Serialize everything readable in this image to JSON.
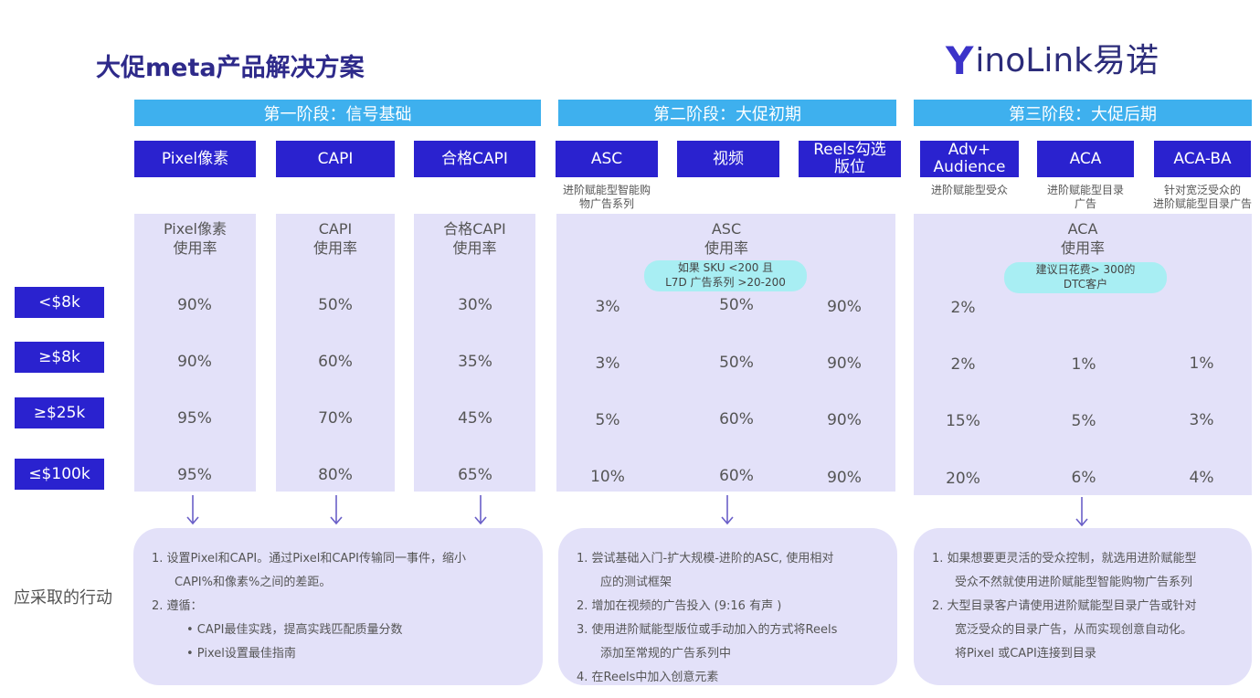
{
  "title": "大促meta产品解决方案",
  "logo": {
    "brand_mark": "Y",
    "brand_text": "inoLink易诺"
  },
  "stages": [
    "第一阶段：信号基础",
    "第二阶段：大促初期",
    "第三阶段：大促后期"
  ],
  "products": [
    {
      "label": "Pixel像素",
      "sub": ""
    },
    {
      "label": "CAPI",
      "sub": ""
    },
    {
      "label": "合格CAPI",
      "sub": ""
    },
    {
      "label": "ASC",
      "sub_lines": [
        "进阶赋能型智能购",
        "物广告系列"
      ]
    },
    {
      "label": "视频",
      "sub": ""
    },
    {
      "label_lines": [
        "Reels勾选",
        "版位"
      ]
    },
    {
      "label_lines": [
        "Adv+",
        "Audience"
      ],
      "sub_lines": [
        "进阶赋能型受众"
      ]
    },
    {
      "label": "ACA",
      "sub_lines": [
        "进阶赋能型目录",
        "广告"
      ]
    },
    {
      "label": "ACA-BA",
      "sub_lines": [
        "针对宽泛受众的",
        "进阶赋能型目录广告"
      ]
    }
  ],
  "col_heads": {
    "pixel": [
      "Pixel像素",
      "使用率"
    ],
    "capi": [
      "CAPI",
      "使用率"
    ],
    "qcapi": [
      "合格CAPI",
      "使用率"
    ],
    "asc": [
      "ASC",
      "使用率"
    ],
    "aca": [
      "ACA",
      "使用率"
    ]
  },
  "notes": {
    "asc": [
      "如果 SKU <200 且",
      "L7D 广告系列 >20-200"
    ],
    "aca": [
      "建议日花费> 300的",
      "DTC客户"
    ]
  },
  "tiers": [
    "<$8k",
    "≥$8k",
    "≥$25k",
    "≤$100k"
  ],
  "rows": [
    [
      "90%",
      "50%",
      "30%",
      "3%",
      "50%",
      "90%",
      "2%",
      "",
      ""
    ],
    [
      "90%",
      "60%",
      "35%",
      "3%",
      "50%",
      "90%",
      "2%",
      "1%",
      "1%"
    ],
    [
      "95%",
      "70%",
      "45%",
      "5%",
      "60%",
      "90%",
      "15%",
      "5%",
      "3%"
    ],
    [
      "95%",
      "80%",
      "65%",
      "10%",
      "60%",
      "90%",
      "20%",
      "6%",
      "4%"
    ]
  ],
  "action_label": "应采取的行动",
  "actions": {
    "stage1": [
      "1.    设置Pixel和CAPI。通过Pixel和CAPI传输同一事件，缩小",
      "CAPI%和像素%之间的差距。",
      "2.    遵循：",
      "•       CAPI最佳实践，提高实践匹配质量分数",
      "•       Pixel设置最佳指南"
    ],
    "stage2": [
      "1.    尝试基础入门-扩大规模-进阶的ASC, 使用相对",
      "应的测试框架",
      "2.    增加在视频的广告投入 (9:16 有声 )",
      "3.    使用进阶赋能型版位或手动加入的方式将Reels",
      "添加至常规的广告系列中",
      "4.    在Reels中加入创意元素"
    ],
    "stage3": [
      "1.    如果想要更灵活的受众控制，就选用进阶赋能型",
      "受众不然就使用进阶赋能型智能购物广告系列",
      "2.    大型目录客户请使用进阶赋能型目录广告或针对",
      "宽泛受众的目录广告，从而实现创意自动化。",
      "将Pixel 或CAPI连接到目录"
    ]
  },
  "colors": {
    "primary": "#2a22cf",
    "stage": "#3eb0ee",
    "panel": "#e3e1f9",
    "note": "#a8eef3",
    "title": "#2e2a8a"
  }
}
